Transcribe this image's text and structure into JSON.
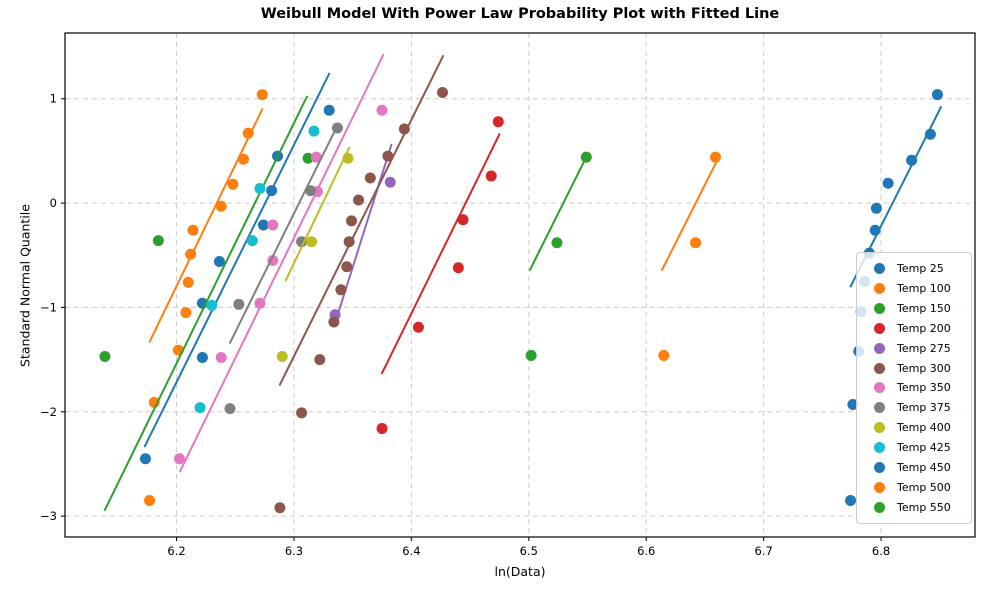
{
  "chart_data": {
    "type": "scatter",
    "title": "Weibull Model With Power Law Probability Plot with Fitted Line",
    "xlabel": "ln(Data)",
    "ylabel": "Standard Normal Quantile",
    "xlim": [
      6.105,
      6.88
    ],
    "ylim": [
      -3.2,
      1.63
    ],
    "xticks": [
      6.2,
      6.3,
      6.4,
      6.5,
      6.6,
      6.7,
      6.8
    ],
    "xtick_labels": [
      "6.2",
      "6.3",
      "6.4",
      "6.5",
      "6.6",
      "6.7",
      "6.8"
    ],
    "yticks": [
      -3,
      -2,
      -1,
      0,
      1
    ],
    "ytick_labels": [
      "−3",
      "−2",
      "−1",
      "0",
      "1"
    ],
    "grid": true,
    "grid_color": "#cccccc",
    "legend_position": "lower right",
    "marker": "circle",
    "series": [
      {
        "name": "Temp 25",
        "color": "#1f77b4",
        "points": [
          [
            6.1735,
            -2.45
          ],
          [
            6.222,
            -1.48
          ],
          [
            6.222,
            -0.96
          ],
          [
            6.2365,
            -0.56
          ],
          [
            6.274,
            -0.21
          ],
          [
            6.281,
            0.12
          ],
          [
            6.286,
            0.45
          ],
          [
            6.33,
            0.89
          ]
        ],
        "fit_line": {
          "x1": 6.173,
          "y1": -2.33,
          "x2": 6.33,
          "y2": 1.24
        }
      },
      {
        "name": "Temp 100",
        "color": "#ff7f0e",
        "points": [
          [
            6.177,
            -2.85
          ],
          [
            6.181,
            -1.91
          ],
          [
            6.2015,
            -1.41
          ],
          [
            6.208,
            -1.05
          ],
          [
            6.21,
            -0.76
          ],
          [
            6.212,
            -0.49
          ],
          [
            6.214,
            -0.26
          ],
          [
            6.238,
            -0.03
          ],
          [
            6.248,
            0.18
          ],
          [
            6.257,
            0.42
          ],
          [
            6.261,
            0.67
          ],
          [
            6.273,
            1.04
          ]
        ],
        "fit_line": {
          "x1": 6.177,
          "y1": -1.33,
          "x2": 6.273,
          "y2": 0.9
        }
      },
      {
        "name": "Temp 150",
        "color": "#2ca02c",
        "points": [
          [
            6.139,
            -1.47
          ],
          [
            6.1845,
            -0.36
          ],
          [
            6.312,
            0.43
          ]
        ],
        "fit_line": {
          "x1": 6.139,
          "y1": -2.94,
          "x2": 6.311,
          "y2": 1.02
        }
      },
      {
        "name": "Temp 200",
        "color": "#d62728",
        "points": [
          [
            6.375,
            -2.16
          ],
          [
            6.406,
            -1.19
          ],
          [
            6.44,
            -0.62
          ],
          [
            6.444,
            -0.16
          ],
          [
            6.468,
            0.26
          ],
          [
            6.474,
            0.78
          ]
        ],
        "fit_line": {
          "x1": 6.375,
          "y1": -1.63,
          "x2": 6.475,
          "y2": 0.66
        }
      },
      {
        "name": "Temp 275",
        "color": "#9467bd",
        "points": [
          [
            6.335,
            -1.07
          ],
          [
            6.382,
            0.2
          ]
        ],
        "fit_line": {
          "x1": 6.335,
          "y1": -1.15,
          "x2": 6.383,
          "y2": 0.56
        }
      },
      {
        "name": "Temp 300",
        "color": "#8c564b",
        "points": [
          [
            6.288,
            -2.92
          ],
          [
            6.3065,
            -2.01
          ],
          [
            6.322,
            -1.5
          ],
          [
            6.334,
            -1.14
          ],
          [
            6.34,
            -0.83
          ],
          [
            6.345,
            -0.61
          ],
          [
            6.347,
            -0.37
          ],
          [
            6.349,
            -0.17
          ],
          [
            6.355,
            0.03
          ],
          [
            6.365,
            0.24
          ],
          [
            6.38,
            0.45
          ],
          [
            6.394,
            0.71
          ],
          [
            6.4265,
            1.06
          ]
        ],
        "fit_line": {
          "x1": 6.288,
          "y1": -1.74,
          "x2": 6.427,
          "y2": 1.41
        }
      },
      {
        "name": "Temp 350",
        "color": "#e377c2",
        "points": [
          [
            6.2025,
            -2.45
          ],
          [
            6.238,
            -1.48
          ],
          [
            6.271,
            -0.96
          ],
          [
            6.282,
            -0.55
          ],
          [
            6.282,
            -0.21
          ],
          [
            6.32,
            0.11
          ],
          [
            6.319,
            0.44
          ],
          [
            6.375,
            0.89
          ]
        ],
        "fit_line": {
          "x1": 6.203,
          "y1": -2.57,
          "x2": 6.376,
          "y2": 1.42
        }
      },
      {
        "name": "Temp 375",
        "color": "#7f7f7f",
        "points": [
          [
            6.2455,
            -1.97
          ],
          [
            6.253,
            -0.97
          ],
          [
            6.3065,
            -0.37
          ],
          [
            6.314,
            0.12
          ],
          [
            6.337,
            0.72
          ]
        ],
        "fit_line": {
          "x1": 6.2455,
          "y1": -1.34,
          "x2": 6.336,
          "y2": 0.72
        }
      },
      {
        "name": "Temp 400",
        "color": "#bcbd22",
        "points": [
          [
            6.29,
            -1.47
          ],
          [
            6.315,
            -0.37
          ],
          [
            6.346,
            0.43
          ]
        ],
        "fit_line": {
          "x1": 6.293,
          "y1": -0.74,
          "x2": 6.347,
          "y2": 0.53
        }
      },
      {
        "name": "Temp 425",
        "color": "#17becf",
        "points": [
          [
            6.22,
            -1.96
          ],
          [
            6.23,
            -0.98
          ],
          [
            6.2645,
            -0.36
          ],
          [
            6.271,
            0.14
          ],
          [
            6.317,
            0.69
          ]
        ],
        "fit_line": null
      },
      {
        "name": "Temp 450",
        "color": "#1f77b4",
        "points": [
          [
            6.774,
            -2.85
          ],
          [
            6.776,
            -1.93
          ],
          [
            6.781,
            -1.42
          ],
          [
            6.783,
            -1.04
          ],
          [
            6.786,
            -0.75
          ],
          [
            6.79,
            -0.48
          ],
          [
            6.795,
            -0.26
          ],
          [
            6.796,
            -0.05
          ],
          [
            6.806,
            0.19
          ],
          [
            6.826,
            0.41
          ],
          [
            6.842,
            0.66
          ],
          [
            6.848,
            1.04
          ]
        ],
        "fit_line": {
          "x1": 6.774,
          "y1": -0.8,
          "x2": 6.851,
          "y2": 0.92
        }
      },
      {
        "name": "Temp 500",
        "color": "#ff7f0e",
        "points": [
          [
            6.615,
            -1.46
          ],
          [
            6.642,
            -0.38
          ],
          [
            6.659,
            0.44
          ]
        ],
        "fit_line": {
          "x1": 6.6135,
          "y1": -0.64,
          "x2": 6.66,
          "y2": 0.4
        }
      },
      {
        "name": "Temp 550",
        "color": "#2ca02c",
        "points": [
          [
            6.502,
            -1.46
          ],
          [
            6.524,
            -0.38
          ],
          [
            6.549,
            0.44
          ]
        ],
        "fit_line": {
          "x1": 6.501,
          "y1": -0.64,
          "x2": 6.548,
          "y2": 0.42
        }
      }
    ]
  }
}
